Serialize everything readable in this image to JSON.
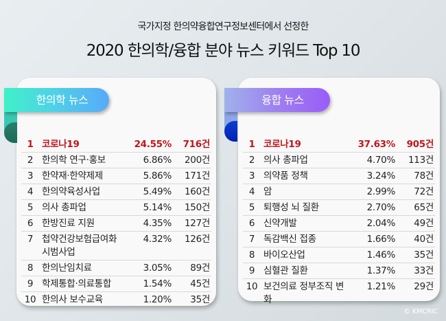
{
  "header": {
    "subtitle": "국가지정 한의약융합연구정보센터에서 선정한",
    "title": "2020 한의학/융합 분야 뉴스 키워드 Top 10"
  },
  "colors": {
    "highlight_red": "#c0151c",
    "left_ribbon_gradient": [
      "#3ff0c8",
      "#56aaf8"
    ],
    "right_ribbon_gradient": [
      "#a0b2ec",
      "#9a5cf8"
    ],
    "background": "#dfe5e8"
  },
  "left": {
    "label": "한의학 뉴스",
    "rows": [
      {
        "rank": "1",
        "keyword": "코로나19",
        "percent": "24.55%",
        "count": "716건"
      },
      {
        "rank": "2",
        "keyword": "한의학 연구·홍보",
        "percent": "6.86%",
        "count": "200건"
      },
      {
        "rank": "3",
        "keyword": "한약재·한약제제",
        "percent": "5.86%",
        "count": "171건"
      },
      {
        "rank": "4",
        "keyword": "한의약육성사업",
        "percent": "5.49%",
        "count": "160건"
      },
      {
        "rank": "5",
        "keyword": "의사 총파업",
        "percent": "5.14%",
        "count": "150건"
      },
      {
        "rank": "6",
        "keyword": "한방진료 지원",
        "percent": "4.35%",
        "count": "127건"
      },
      {
        "rank": "7",
        "keyword": "첩약건강보험급여화 시범사업",
        "percent": "4.32%",
        "count": "126건"
      },
      {
        "rank": "8",
        "keyword": "한의난임치료",
        "percent": "3.05%",
        "count": "89건"
      },
      {
        "rank": "9",
        "keyword": "학제통합·의료통합",
        "percent": "1.54%",
        "count": "45건"
      },
      {
        "rank": "10",
        "keyword": "한의사 보수교육",
        "percent": "1.20%",
        "count": "35건"
      }
    ]
  },
  "right": {
    "label": "융합 뉴스",
    "rows": [
      {
        "rank": "1",
        "keyword": "코로나19",
        "percent": "37.63%",
        "count": "905건"
      },
      {
        "rank": "2",
        "keyword": "의사 총파업",
        "percent": "4.70%",
        "count": "113건"
      },
      {
        "rank": "3",
        "keyword": "의약품 정책",
        "percent": "3.24%",
        "count": "78건"
      },
      {
        "rank": "4",
        "keyword": "암",
        "percent": "2.99%",
        "count": "72건"
      },
      {
        "rank": "5",
        "keyword": "퇴행성 뇌 질환",
        "percent": "2.70%",
        "count": "65건"
      },
      {
        "rank": "6",
        "keyword": "신약개발",
        "percent": "2.04%",
        "count": "49건"
      },
      {
        "rank": "7",
        "keyword": "독감백신 접종",
        "percent": "1.66%",
        "count": "40건"
      },
      {
        "rank": "8",
        "keyword": "바이오산업",
        "percent": "1.46%",
        "count": "35건"
      },
      {
        "rank": "9",
        "keyword": "심혈관 질환",
        "percent": "1.37%",
        "count": "33건"
      },
      {
        "rank": "10",
        "keyword": "보건의료 정부조직 변화",
        "percent": "1.21%",
        "count": "29건"
      }
    ]
  },
  "credit": "© KMCRIC"
}
